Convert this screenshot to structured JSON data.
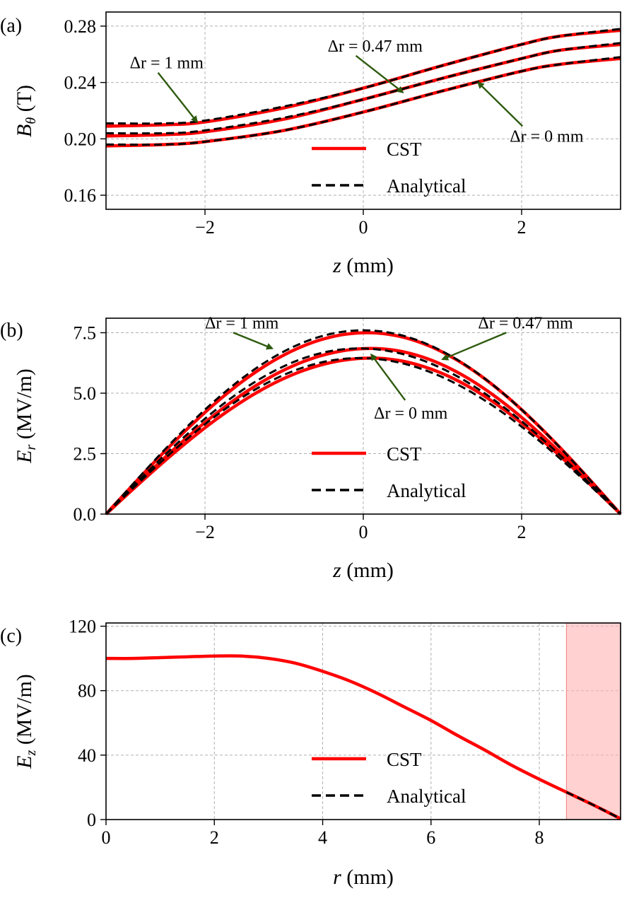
{
  "colors": {
    "cst": "#ff0000",
    "analytical": "#000000",
    "arrow": "#2d5a0f",
    "grid": "#b0b0b0",
    "shade": "#ffb3b3"
  },
  "chart_data": [
    {
      "type": "line",
      "panel_label": "(a)",
      "xlabel_var": "z",
      "xlabel_unit": " (mm)",
      "ylabel_var": "B",
      "ylabel_sub": "θ",
      "ylabel_unit": " (T)",
      "xlim": [
        -3.25,
        3.25
      ],
      "ylim": [
        0.15,
        0.29
      ],
      "xticks": [
        -2,
        0,
        2
      ],
      "xtick_labels": [
        "−2",
        "0",
        "2"
      ],
      "yticks": [
        0.16,
        0.2,
        0.24,
        0.28
      ],
      "ytick_labels": [
        "0.16",
        "0.20",
        "0.24",
        "0.28"
      ],
      "legend": {
        "cst": "CST",
        "analytical": "Analytical",
        "placement": "lower-center"
      },
      "series": [
        {
          "name": "Δr = 1 mm",
          "source": "CST",
          "x": [
            -3.25,
            -2.5,
            -2,
            -1,
            0,
            1,
            2,
            2.5,
            3.25
          ],
          "y": [
            0.209,
            0.21,
            0.212,
            0.222,
            0.236,
            0.252,
            0.267,
            0.273,
            0.277
          ]
        },
        {
          "name": "Δr = 1 mm",
          "source": "Analytical",
          "x": [
            -3.25,
            -2.5,
            -2,
            -1,
            0,
            1,
            2,
            2.5,
            3.25
          ],
          "y": [
            0.211,
            0.211,
            0.213,
            0.223,
            0.236,
            0.252,
            0.267,
            0.273,
            0.278
          ]
        },
        {
          "name": "Δr = 0.47 mm",
          "source": "CST",
          "x": [
            -3.25,
            -2.5,
            -2,
            -1,
            0,
            1,
            2,
            2.5,
            3.25
          ],
          "y": [
            0.202,
            0.203,
            0.205,
            0.214,
            0.228,
            0.243,
            0.257,
            0.263,
            0.267
          ]
        },
        {
          "name": "Δr = 0.47 mm",
          "source": "Analytical",
          "x": [
            -3.25,
            -2.5,
            -2,
            -1,
            0,
            1,
            2,
            2.5,
            3.25
          ],
          "y": [
            0.204,
            0.204,
            0.206,
            0.215,
            0.228,
            0.243,
            0.257,
            0.263,
            0.268
          ]
        },
        {
          "name": "Δr = 0 mm",
          "source": "CST",
          "x": [
            -3.25,
            -2.5,
            -2,
            -1,
            0,
            1,
            2,
            2.5,
            3.25
          ],
          "y": [
            0.195,
            0.196,
            0.198,
            0.206,
            0.219,
            0.234,
            0.248,
            0.253,
            0.257
          ]
        },
        {
          "name": "Δr = 0 mm",
          "source": "Analytical",
          "x": [
            -3.25,
            -2.5,
            -2,
            -1,
            0,
            1,
            2,
            2.5,
            3.25
          ],
          "y": [
            0.196,
            0.196,
            0.198,
            0.206,
            0.219,
            0.234,
            0.248,
            0.253,
            0.258
          ]
        }
      ],
      "annotations": [
        {
          "text": "Δr = 1 mm",
          "anchor": "start",
          "text_xy": [
            -2.95,
            0.25
          ],
          "arrow_to": [
            -2.1,
            0.212
          ]
        },
        {
          "text": "Δr = 0.47 mm",
          "anchor": "start",
          "text_xy": [
            -0.45,
            0.262
          ],
          "arrow_to": [
            0.5,
            0.233
          ]
        },
        {
          "text": "Δr = 0 mm",
          "anchor": "start",
          "text_xy": [
            1.85,
            0.198
          ],
          "arrow_to": [
            1.45,
            0.24
          ]
        }
      ]
    },
    {
      "type": "line",
      "panel_label": "(b)",
      "xlabel_var": "z",
      "xlabel_unit": " (mm)",
      "ylabel_var": "E",
      "ylabel_sub": "r",
      "ylabel_unit": " (MV/m)",
      "xlim": [
        -3.25,
        3.25
      ],
      "ylim": [
        0,
        8.1
      ],
      "xticks": [
        -2,
        0,
        2
      ],
      "xtick_labels": [
        "−2",
        "0",
        "2"
      ],
      "yticks": [
        0,
        2.5,
        5.0,
        7.5
      ],
      "ytick_labels": [
        "0.0",
        "2.5",
        "5.0",
        "7.5"
      ],
      "legend": {
        "cst": "CST",
        "analytical": "Analytical",
        "placement": "lower-center"
      },
      "series": [
        {
          "name": "Δr = 1 mm",
          "source": "CST",
          "peak": 7.5,
          "peak_x": 0.05,
          "x_range": [
            -3.25,
            3.25
          ]
        },
        {
          "name": "Δr = 1 mm",
          "source": "Analytical",
          "peak": 7.6,
          "peak_x": 0.0,
          "x_range": [
            -3.25,
            3.25
          ]
        },
        {
          "name": "Δr = 0.47 mm",
          "source": "CST",
          "peak": 6.85,
          "peak_x": 0.1,
          "x_range": [
            -3.25,
            3.25
          ]
        },
        {
          "name": "Δr = 0.47 mm",
          "source": "Analytical",
          "peak": 6.85,
          "peak_x": -0.05,
          "x_range": [
            -3.25,
            3.25
          ]
        },
        {
          "name": "Δr = 0 mm",
          "source": "CST",
          "peak": 6.45,
          "peak_x": 0.1,
          "x_range": [
            -3.25,
            3.25
          ]
        },
        {
          "name": "Δr = 0 mm",
          "source": "Analytical",
          "peak": 6.45,
          "peak_x": -0.05,
          "x_range": [
            -3.25,
            3.25
          ]
        }
      ],
      "annotations": [
        {
          "text": "Δr = 1 mm",
          "anchor": "start",
          "text_xy": [
            -2.0,
            7.68
          ],
          "arrow_to": [
            -1.15,
            6.85
          ]
        },
        {
          "text": "Δr = 0.47 mm",
          "anchor": "start",
          "text_xy": [
            1.45,
            7.68
          ],
          "arrow_to": [
            1.0,
            6.4
          ]
        },
        {
          "text": "Δr = 0 mm",
          "anchor": "middle",
          "text_xy": [
            0.6,
            3.95
          ],
          "arrow_to": [
            0.1,
            6.6
          ]
        }
      ]
    },
    {
      "type": "line",
      "panel_label": "(c)",
      "xlabel_var": "r",
      "xlabel_unit": " (mm)",
      "ylabel_var": "E",
      "ylabel_sub": "z",
      "ylabel_unit": " (MV/m)",
      "xlim": [
        0,
        9.5
      ],
      "ylim": [
        0,
        122
      ],
      "xticks": [
        0,
        2,
        4,
        6,
        8
      ],
      "xtick_labels": [
        "0",
        "2",
        "4",
        "6",
        "8"
      ],
      "yticks": [
        0,
        40,
        80,
        120
      ],
      "ytick_labels": [
        "0",
        "40",
        "80",
        "120"
      ],
      "shaded_region_x": [
        8.5,
        9.5
      ],
      "legend": {
        "cst": "CST",
        "analytical": "Analytical",
        "placement": "lower-center"
      },
      "series": [
        {
          "name": "E_z",
          "source": "CST",
          "x": [
            0,
            0.5,
            1,
            1.5,
            2,
            2.5,
            3,
            3.5,
            4,
            4.5,
            5,
            5.5,
            6,
            6.5,
            7,
            7.5,
            8,
            8.5,
            9,
            9.5
          ],
          "y": [
            100,
            100,
            100.5,
            101,
            101.5,
            101.5,
            100,
            97,
            92,
            86,
            78.5,
            70,
            61.5,
            52,
            43,
            33.5,
            25,
            17,
            9,
            0.5
          ]
        },
        {
          "name": "E_z",
          "source": "Analytical",
          "x": [
            8.5,
            9,
            9.5
          ],
          "y": [
            17,
            9,
            0.5
          ]
        }
      ]
    }
  ]
}
